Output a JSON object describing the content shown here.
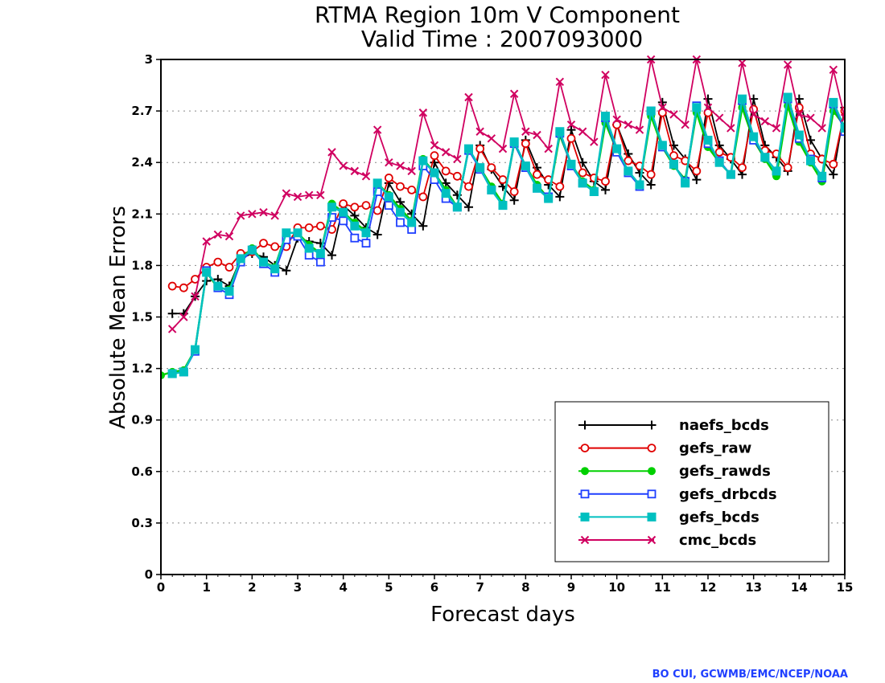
{
  "chart_data": {
    "type": "line",
    "title": "RTMA Region 10m V Component",
    "subtitle": "Valid Time : 2007093000",
    "xlabel": "Forecast days",
    "ylabel": "Absolute Mean Errors",
    "xlim": [
      0,
      15
    ],
    "ylim": [
      0,
      3
    ],
    "xticks": [
      "0",
      "1",
      "2",
      "3",
      "4",
      "5",
      "6",
      "7",
      "8",
      "9",
      "10",
      "11",
      "12",
      "13",
      "14",
      "15"
    ],
    "yticks": [
      "0",
      "0.3",
      "0.6",
      "0.9",
      "1.2",
      "1.5",
      "1.8",
      "2.1",
      "2.4",
      "2.7",
      "3"
    ],
    "grid": "horizontal dotted",
    "legend_position": "bottom-right",
    "x": [
      0,
      0.25,
      0.5,
      0.75,
      1,
      1.25,
      1.5,
      1.75,
      2,
      2.25,
      2.5,
      2.75,
      3,
      3.25,
      3.5,
      3.75,
      4,
      4.25,
      4.5,
      4.75,
      5,
      5.25,
      5.5,
      5.75,
      6,
      6.25,
      6.5,
      6.75,
      7,
      7.25,
      7.5,
      7.75,
      8,
      8.25,
      8.5,
      8.75,
      9,
      9.25,
      9.5,
      9.75,
      10,
      10.25,
      10.5,
      10.75,
      11,
      11.25,
      11.5,
      11.75,
      12,
      12.25,
      12.5,
      12.75,
      13,
      13.25,
      13.5,
      13.75,
      14,
      14.25,
      14.5,
      14.75,
      15
    ],
    "series": [
      {
        "name": "naefs_bcds",
        "color": "#000000",
        "marker": "plus",
        "values": [
          null,
          1.52,
          1.52,
          1.62,
          1.71,
          1.72,
          1.68,
          1.84,
          1.87,
          1.85,
          1.8,
          1.77,
          1.96,
          1.94,
          1.93,
          1.86,
          2.15,
          2.09,
          2.02,
          1.98,
          2.28,
          2.17,
          2.1,
          2.03,
          2.4,
          2.28,
          2.21,
          2.14,
          2.5,
          2.36,
          2.26,
          2.18,
          2.53,
          2.37,
          2.27,
          2.2,
          2.59,
          2.4,
          2.29,
          2.24,
          2.62,
          2.45,
          2.34,
          2.27,
          2.75,
          2.5,
          2.42,
          2.3,
          2.77,
          2.5,
          2.42,
          2.33,
          2.77,
          2.5,
          2.43,
          2.35,
          2.77,
          2.53,
          2.42,
          2.33,
          2.72
        ]
      },
      {
        "name": "gefs_raw",
        "color": "#e00000",
        "marker": "circle",
        "values": [
          null,
          1.68,
          1.67,
          1.72,
          1.79,
          1.82,
          1.79,
          1.87,
          1.88,
          1.93,
          1.91,
          1.91,
          2.02,
          2.02,
          2.03,
          2.01,
          2.16,
          2.14,
          2.15,
          2.12,
          2.31,
          2.26,
          2.24,
          2.2,
          2.44,
          2.35,
          2.32,
          2.26,
          2.48,
          2.37,
          2.3,
          2.23,
          2.51,
          2.33,
          2.3,
          2.26,
          2.54,
          2.34,
          2.31,
          2.29,
          2.62,
          2.41,
          2.38,
          2.33,
          2.69,
          2.44,
          2.41,
          2.35,
          2.69,
          2.46,
          2.43,
          2.37,
          2.71,
          2.47,
          2.45,
          2.37,
          2.72,
          2.45,
          2.42,
          2.39,
          2.7
        ]
      },
      {
        "name": "gefs_rawds",
        "color": "#00d000",
        "marker": "dot",
        "values": [
          1.16,
          1.18,
          1.19,
          1.31,
          1.76,
          1.67,
          1.66,
          1.84,
          1.9,
          1.82,
          1.79,
          1.99,
          1.99,
          1.92,
          1.87,
          2.16,
          2.11,
          2.05,
          2.0,
          2.28,
          2.21,
          2.13,
          2.06,
          2.42,
          2.34,
          2.24,
          2.14,
          2.48,
          2.37,
          2.26,
          2.16,
          2.51,
          2.38,
          2.27,
          2.19,
          2.56,
          2.39,
          2.29,
          2.24,
          2.63,
          2.47,
          2.35,
          2.27,
          2.67,
          2.49,
          2.38,
          2.3,
          2.69,
          2.49,
          2.4,
          2.33,
          2.72,
          2.53,
          2.42,
          2.32,
          2.73,
          2.52,
          2.4,
          2.29,
          2.7,
          2.61
        ]
      },
      {
        "name": "gefs_drbcds",
        "color": "#1f3fff",
        "marker": "square-open",
        "values": [
          null,
          1.17,
          1.18,
          1.3,
          1.77,
          1.67,
          1.63,
          1.82,
          1.89,
          1.81,
          1.76,
          1.95,
          1.97,
          1.86,
          1.82,
          2.08,
          2.06,
          1.96,
          1.93,
          2.23,
          2.15,
          2.05,
          2.01,
          2.38,
          2.3,
          2.19,
          2.14,
          2.47,
          2.36,
          2.24,
          2.15,
          2.51,
          2.37,
          2.25,
          2.2,
          2.57,
          2.38,
          2.28,
          2.23,
          2.66,
          2.46,
          2.34,
          2.26,
          2.7,
          2.49,
          2.39,
          2.29,
          2.73,
          2.51,
          2.41,
          2.33,
          2.76,
          2.53,
          2.43,
          2.35,
          2.77,
          2.54,
          2.42,
          2.31,
          2.74,
          2.58
        ]
      },
      {
        "name": "gefs_bcds",
        "color": "#00c0c0",
        "marker": "square-filled",
        "values": [
          null,
          1.17,
          1.18,
          1.31,
          1.76,
          1.68,
          1.65,
          1.84,
          1.89,
          1.82,
          1.78,
          1.99,
          1.99,
          1.9,
          1.87,
          2.14,
          2.11,
          2.03,
          1.99,
          2.28,
          2.2,
          2.11,
          2.05,
          2.41,
          2.34,
          2.22,
          2.14,
          2.48,
          2.37,
          2.24,
          2.15,
          2.52,
          2.38,
          2.25,
          2.19,
          2.58,
          2.39,
          2.28,
          2.23,
          2.67,
          2.48,
          2.35,
          2.27,
          2.7,
          2.5,
          2.39,
          2.28,
          2.72,
          2.53,
          2.4,
          2.33,
          2.77,
          2.55,
          2.43,
          2.35,
          2.78,
          2.56,
          2.41,
          2.32,
          2.75,
          2.6
        ]
      },
      {
        "name": "cmc_bcds",
        "color": "#d00060",
        "marker": "x",
        "values": [
          null,
          1.43,
          1.5,
          1.62,
          1.94,
          1.98,
          1.97,
          2.09,
          2.1,
          2.11,
          2.09,
          2.22,
          2.2,
          2.21,
          2.21,
          2.46,
          2.38,
          2.35,
          2.32,
          2.59,
          2.4,
          2.38,
          2.35,
          2.69,
          2.5,
          2.46,
          2.42,
          2.78,
          2.58,
          2.54,
          2.48,
          2.8,
          2.58,
          2.56,
          2.48,
          2.87,
          2.62,
          2.58,
          2.52,
          2.91,
          2.65,
          2.62,
          2.59,
          3.0,
          2.72,
          2.68,
          2.62,
          3.0,
          2.72,
          2.66,
          2.6,
          2.98,
          2.68,
          2.64,
          2.6,
          2.97,
          2.68,
          2.66,
          2.6,
          2.94,
          2.66
        ]
      }
    ]
  },
  "credit": "BO CUI, GCWMB/EMC/NCEP/NOAA"
}
